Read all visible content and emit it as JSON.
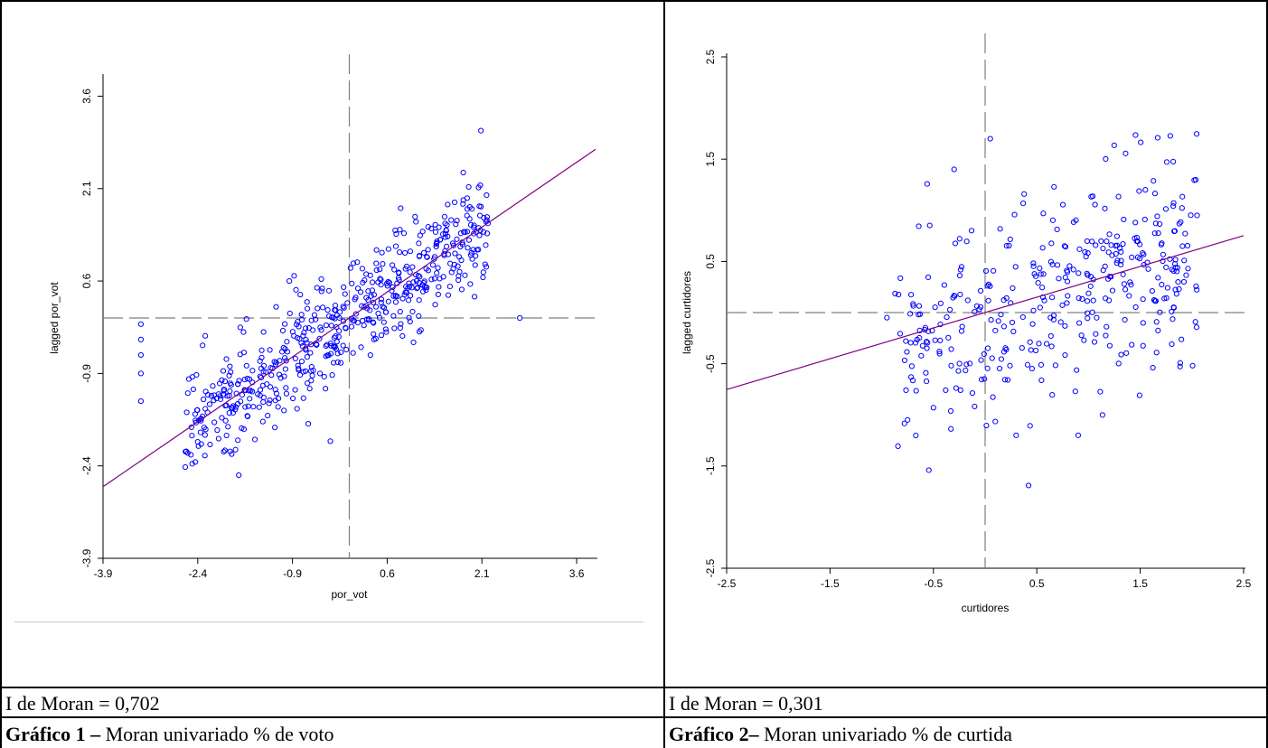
{
  "panels": [
    {
      "id": "left",
      "caption_stat": "I de Moran = 0,702",
      "caption_bold": "Gráfico 1 –",
      "caption_rest": " Moran univariado % de voto",
      "chart": {
        "type": "scatter",
        "xlabel": "por_vot",
        "ylabel": "lagged por_vot",
        "xlim": [
          -3.9,
          3.9
        ],
        "ylim": [
          -3.9,
          3.9
        ],
        "xticks": [
          "-3.9",
          "-2.4",
          "-0.9",
          "0.6",
          "2.1",
          "3.6"
        ],
        "yticks": [
          "-3.9",
          "-2.4",
          "-0.9",
          "0.6",
          "2.1",
          "3.6"
        ],
        "xtick_values": [
          -3.9,
          -2.4,
          -0.9,
          0.6,
          2.1,
          3.6
        ],
        "ytick_values": [
          -3.9,
          -2.4,
          -0.9,
          0.6,
          2.1,
          3.6
        ],
        "mean_lines": {
          "x": 0,
          "y": 0
        },
        "slope": 0.702,
        "point_color": "#0000ff",
        "line_color": "#800080",
        "seed": 7,
        "n_points": 560,
        "noise": 0.42,
        "x_range": [
          -2.6,
          2.2
        ],
        "extra_points": [
          [
            -3.3,
            -0.1
          ],
          [
            -3.3,
            -0.35
          ],
          [
            -3.3,
            -0.6
          ],
          [
            -3.3,
            -0.9
          ],
          [
            -3.3,
            -1.35
          ],
          [
            2.7,
            0.0
          ],
          [
            1.8,
            1.85
          ],
          [
            -0.95,
            0.6
          ],
          [
            -1.75,
            -2.55
          ],
          [
            -0.3,
            -2.0
          ]
        ]
      }
    },
    {
      "id": "right",
      "caption_stat": "I de Moran = 0,301",
      "caption_bold": "Gráfico 2–",
      "caption_rest": " Moran univariado % de curtida",
      "chart": {
        "type": "scatter",
        "xlabel": "curtidores",
        "ylabel": "lagged curtidores",
        "xlim": [
          -2.5,
          2.5
        ],
        "ylim": [
          -2.5,
          2.5
        ],
        "xticks": [
          "-2.5",
          "-1.5",
          "-0.5",
          "0.5",
          "1.5",
          "2.5"
        ],
        "yticks": [
          "-2.5",
          "-1.5",
          "-0.5",
          "0.5",
          "1.5",
          "2.5"
        ],
        "xtick_values": [
          -2.5,
          -1.5,
          -0.5,
          0.5,
          1.5,
          2.5
        ],
        "ytick_values": [
          -2.5,
          -1.5,
          -0.5,
          0.5,
          1.5,
          2.5
        ],
        "mean_lines": {
          "x": 0,
          "y": 0
        },
        "slope": 0.301,
        "point_color": "#0000ff",
        "line_color": "#800080",
        "seed": 23,
        "n_points": 370,
        "noise": 0.5,
        "x_range": [
          -0.9,
          2.05
        ],
        "extra_points": [
          [
            -0.75,
            -1.05
          ],
          [
            0.05,
            1.7
          ],
          [
            -0.3,
            1.4
          ],
          [
            0.3,
            -1.2
          ],
          [
            0.9,
            -1.2
          ],
          [
            1.55,
            1.2
          ],
          [
            2.05,
            0.95
          ],
          [
            -0.95,
            -0.05
          ],
          [
            -0.5,
            -0.93
          ]
        ]
      }
    }
  ]
}
